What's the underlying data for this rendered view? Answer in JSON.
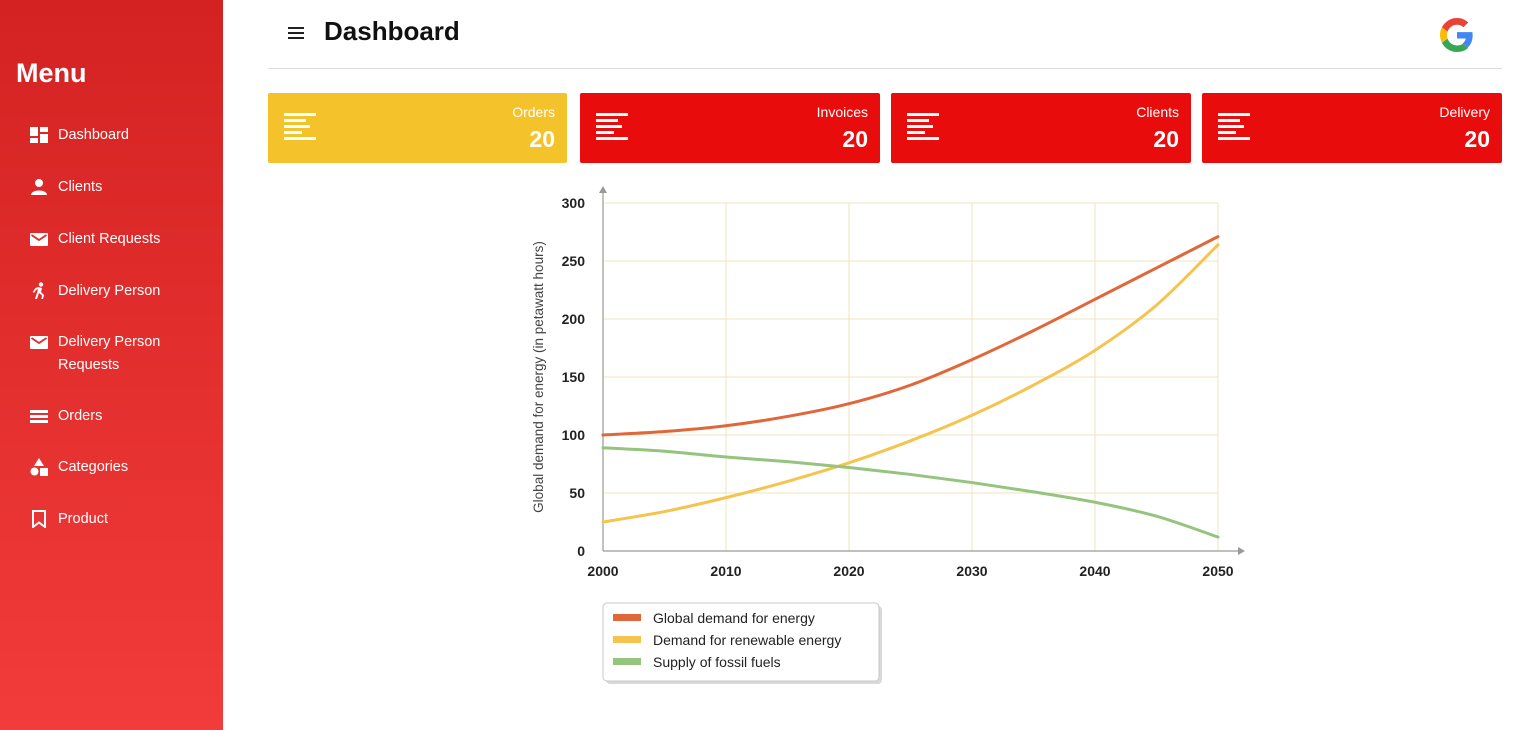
{
  "sidebar": {
    "title": "Menu",
    "items": [
      {
        "label": "Dashboard",
        "icon": "dashboard-icon"
      },
      {
        "label": "Clients",
        "icon": "person-icon"
      },
      {
        "label": "Client Requests",
        "icon": "envelope-icon"
      },
      {
        "label": "Delivery Person",
        "icon": "running-person-icon"
      },
      {
        "label": "Delivery Person Requests",
        "icon": "envelope-icon"
      },
      {
        "label": "Orders",
        "icon": "list-icon"
      },
      {
        "label": "Categories",
        "icon": "shapes-icon"
      },
      {
        "label": "Product",
        "icon": "bookmark-icon"
      }
    ]
  },
  "header": {
    "title": "Dashboard",
    "menu_icon": "hamburger-icon",
    "account_icon": "google-icon"
  },
  "cards": [
    {
      "label": "Orders",
      "value": "20",
      "color": "#f4c22b"
    },
    {
      "label": "Invoices",
      "value": "20",
      "color": "#e80c0c"
    },
    {
      "label": "Clients",
      "value": "20",
      "color": "#e80c0c"
    },
    {
      "label": "Delivery",
      "value": "20",
      "color": "#e80c0c"
    }
  ],
  "chart_data": {
    "type": "line",
    "title": "",
    "xlabel": "",
    "ylabel": "Global demand for energy (in petawatt hours)",
    "xlim": [
      2000,
      2050
    ],
    "ylim": [
      0,
      300
    ],
    "x_ticks": [
      "2000",
      "2010",
      "2020",
      "2030",
      "2040",
      "2050"
    ],
    "y_ticks": [
      "0",
      "50",
      "100",
      "150",
      "200",
      "250",
      "300"
    ],
    "grid": true,
    "legend_position": "bottom-left",
    "x": [
      2000,
      2005,
      2010,
      2015,
      2020,
      2025,
      2030,
      2035,
      2040,
      2045,
      2050
    ],
    "series": [
      {
        "name": "Global demand for energy",
        "color": "#e0673a",
        "values": [
          100,
          103,
          108,
          116,
          127,
          143,
          165,
          190,
          217,
          244,
          271
        ]
      },
      {
        "name": "Demand for renewable energy",
        "color": "#f5c44e",
        "values": [
          25,
          34,
          46,
          60,
          76,
          95,
          117,
          143,
          173,
          212,
          264
        ]
      },
      {
        "name": "Supply of fossil fuels",
        "color": "#94c47e",
        "values": [
          89,
          86,
          81,
          77,
          72,
          66,
          59,
          51,
          42,
          30,
          12
        ]
      }
    ]
  }
}
